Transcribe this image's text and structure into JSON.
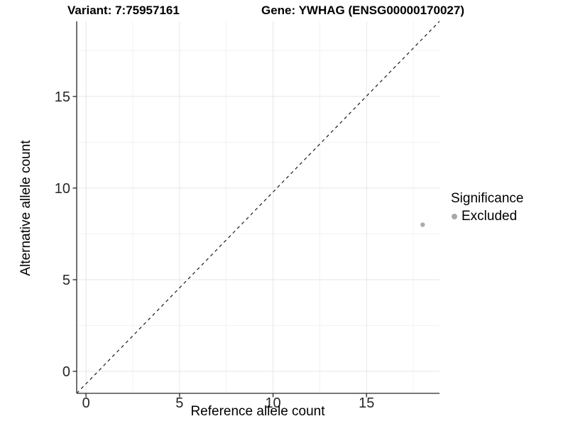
{
  "titles": {
    "variant": "Variant: 7:75957161",
    "gene": "Gene: YWHAG (ENSG00000170027)"
  },
  "axes": {
    "x_label": "Reference allele count",
    "y_label": "Alternative allele count"
  },
  "legend": {
    "title": "Significance",
    "items": [
      {
        "label": "Excluded",
        "color": "#a8a8a8"
      }
    ]
  },
  "colors": {
    "background": "#ffffff",
    "grid_major": "#e6e6e6",
    "grid_minor": "#f2f2f2",
    "axis_line": "#4d4d4d",
    "tick": "#333333",
    "tick_label": "#262626",
    "point": "#acacac",
    "reference_line": "#1a1a1a"
  },
  "chart_data": {
    "type": "scatter",
    "title_left": "Variant: 7:75957161",
    "title_right": "Gene: YWHAG (ENSG00000170027)",
    "xlabel": "Reference allele count",
    "ylabel": "Alternative allele count",
    "x_ticks": [
      0,
      5,
      10,
      15
    ],
    "y_ticks": [
      0,
      5,
      10,
      15
    ],
    "x_minor_ticks": [
      2.5,
      7.5,
      12.5,
      17.5
    ],
    "y_minor_ticks": [
      2.5,
      7.5,
      12.5,
      17.5
    ],
    "xlim": [
      -0.5,
      18.9
    ],
    "ylim": [
      -1.2,
      19.1
    ],
    "grid": true,
    "legend_position": "right",
    "reference_line": {
      "type": "identity",
      "equation": "y = x",
      "style": "dashed"
    },
    "series": [
      {
        "name": "Excluded",
        "color": "#acacac",
        "points": [
          {
            "x": 18,
            "y": 8
          }
        ]
      }
    ]
  }
}
